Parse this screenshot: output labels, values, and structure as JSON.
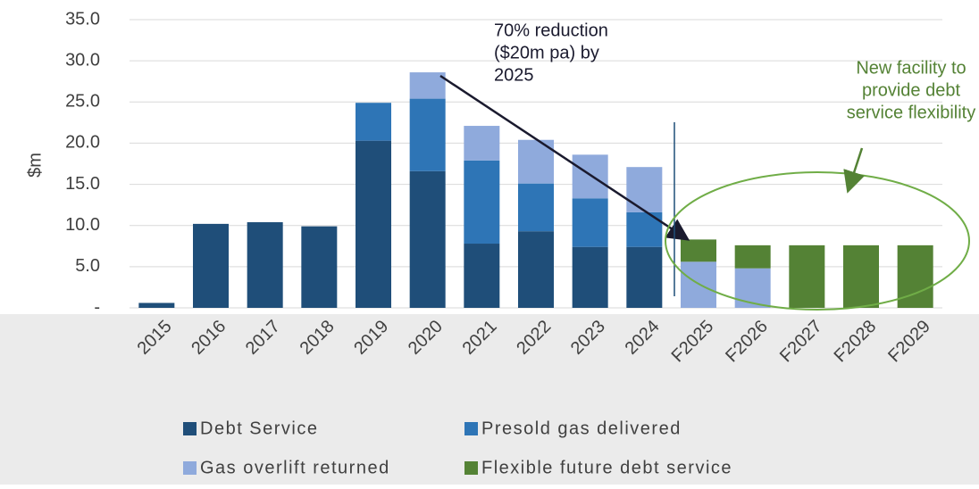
{
  "chart_data": {
    "type": "stacked_bar",
    "y_label": "$m",
    "categories": [
      "2015",
      "2016",
      "2017",
      "2018",
      "2019",
      "2020",
      "2021",
      "2022",
      "2023",
      "2024",
      "F2025",
      "F2026",
      "F2027",
      "F2028",
      "F2029"
    ],
    "series": [
      {
        "name": "Debt Service",
        "color": "#1f4e79",
        "values": [
          0.6,
          10.2,
          10.4,
          9.9,
          20.3,
          16.6,
          7.8,
          9.3,
          7.4,
          7.4,
          0,
          0,
          0,
          0,
          0
        ]
      },
      {
        "name": "Presold gas delivered",
        "color": "#2e75b6",
        "values": [
          0,
          0,
          0,
          0,
          4.6,
          8.8,
          10.1,
          5.8,
          5.9,
          4.2,
          0,
          0,
          0,
          0,
          0
        ]
      },
      {
        "name": "Gas overlift returned",
        "color": "#8faadc",
        "values": [
          0,
          0,
          0,
          0,
          0,
          3.2,
          4.2,
          5.3,
          5.3,
          5.5,
          5.6,
          4.8,
          0,
          0,
          0
        ]
      },
      {
        "name": "Flexible future debt service",
        "color": "#548235",
        "values": [
          0,
          0,
          0,
          0,
          0,
          0,
          0,
          0,
          0,
          0,
          2.7,
          2.8,
          7.6,
          7.6,
          7.6
        ]
      }
    ],
    "ylim": [
      0,
      35
    ],
    "yticks": [
      {
        "value": 0,
        "label": "-"
      },
      {
        "value": 5,
        "label": "5.0"
      },
      {
        "value": 10,
        "label": "10.0"
      },
      {
        "value": 15,
        "label": "15.0"
      },
      {
        "value": 20,
        "label": "20.0"
      },
      {
        "value": 25,
        "label": "25.0"
      },
      {
        "value": 30,
        "label": "30.0"
      },
      {
        "value": 35,
        "label": "35.0"
      }
    ],
    "grid": true,
    "annotations": [
      {
        "lines": [
          "70% reduction",
          "($20m pa) by",
          "2025"
        ],
        "color": "#1a1a2e"
      },
      {
        "lines": [
          "New facility to",
          "provide debt",
          "service flexibility"
        ],
        "color": "#548235"
      }
    ]
  }
}
